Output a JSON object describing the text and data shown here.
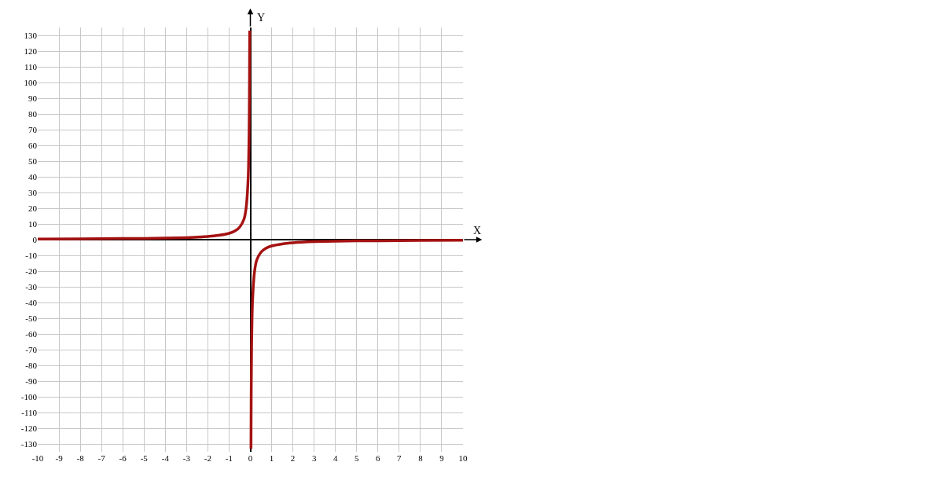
{
  "chart_data": {
    "type": "line",
    "xlabel": "X",
    "ylabel": "Y",
    "series": [
      {
        "color": "#a51212",
        "x": [
          -10,
          -8,
          -6,
          -5,
          -4,
          -3,
          -2,
          -1.5,
          -1,
          -0.7,
          -0.5,
          -0.3,
          -0.2,
          -0.1,
          -0.06,
          -0.04,
          -0.03
        ],
        "values": [
          0.4,
          0.5,
          0.7,
          0.8,
          1,
          1.3,
          2,
          2.7,
          4,
          5.7,
          8,
          13,
          20,
          40,
          67,
          100,
          133
        ]
      },
      {
        "color": "#a51212",
        "x": [
          0.03,
          0.04,
          0.06,
          0.1,
          0.2,
          0.3,
          0.5,
          0.7,
          1,
          1.5,
          2,
          3,
          4,
          5,
          6,
          8,
          10
        ],
        "values": [
          -133,
          -100,
          -67,
          -40,
          -20,
          -13,
          -8,
          -5.7,
          -4,
          -2.7,
          -2,
          -1.3,
          -1,
          -0.8,
          -0.7,
          -0.5,
          -0.4
        ]
      }
    ],
    "xlim": [
      -10,
      10
    ],
    "xticks": [
      -10,
      -9,
      -8,
      -7,
      -6,
      -5,
      -4,
      -3,
      -2,
      -1,
      0,
      1,
      2,
      3,
      4,
      5,
      6,
      7,
      8,
      9,
      10
    ],
    "ylim": [
      -135,
      135
    ],
    "yticks": [
      -130,
      -120,
      -110,
      -100,
      -90,
      -80,
      -70,
      -60,
      -50,
      -40,
      -30,
      -20,
      -10,
      0,
      10,
      20,
      30,
      40,
      50,
      60,
      70,
      80,
      90,
      100,
      110,
      120,
      130
    ],
    "grid": true,
    "legend": false,
    "line_style": "solid",
    "marker": "none"
  }
}
